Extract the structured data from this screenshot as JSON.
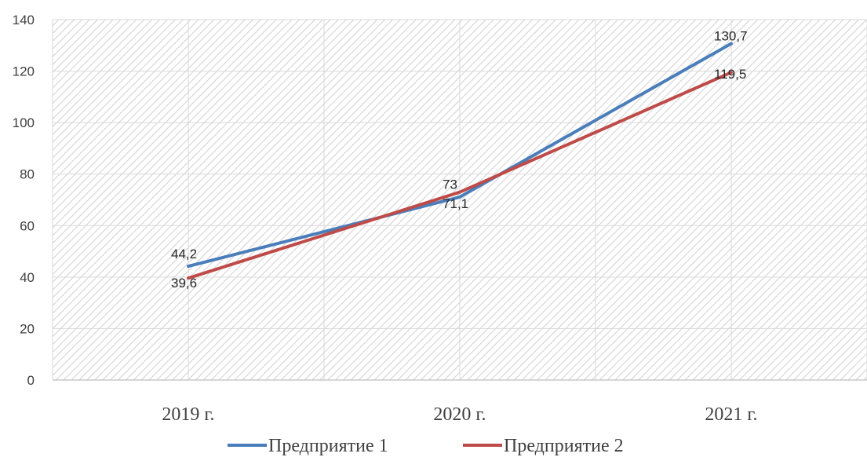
{
  "chart_data": {
    "type": "line",
    "categories": [
      "2019 г.",
      "2020 г.",
      "2021 г."
    ],
    "series": [
      {
        "name": "Предприятие 1",
        "values": [
          44.2,
          71.1,
          130.7
        ],
        "labels": [
          "44,2",
          "71,1",
          "130,7"
        ],
        "color": "#4a7ebb"
      },
      {
        "name": "Предприятие 2",
        "values": [
          39.6,
          73,
          119.5
        ],
        "labels": [
          "39,6",
          "73",
          "119,5"
        ],
        "color": "#be4b48"
      }
    ],
    "ylim": [
      0,
      140
    ],
    "yticks": [
      0,
      20,
      40,
      60,
      80,
      100,
      120,
      140
    ],
    "grid": true,
    "legend_position": "bottom",
    "plot_fill": "hatched"
  }
}
